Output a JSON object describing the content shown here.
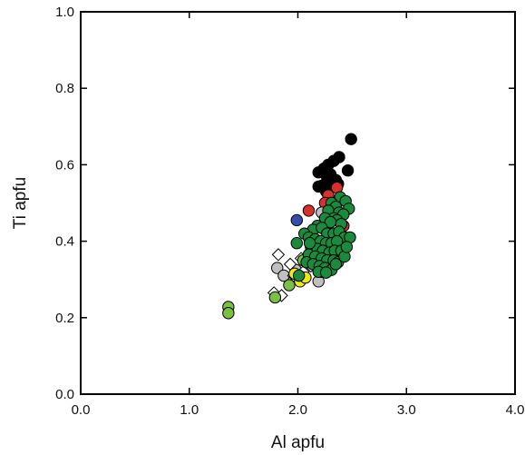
{
  "chart_data": {
    "type": "scatter",
    "xlabel": "Al apfu",
    "ylabel": "Ti apfu",
    "xlim": [
      0,
      4
    ],
    "ylim": [
      0,
      1
    ],
    "x_ticks": [
      "0.0",
      "1.0",
      "2.0",
      "3.0",
      "4.0"
    ],
    "y_ticks": [
      "0.0",
      "0.2",
      "0.4",
      "0.6",
      "0.8",
      "1.0"
    ],
    "grid": false,
    "legend": "none",
    "series": [
      {
        "marker": "circle",
        "fill": "#000000",
        "points": [
          [
            2.49,
            0.667
          ],
          [
            2.38,
            0.62
          ],
          [
            2.33,
            0.61
          ],
          [
            2.28,
            0.6
          ],
          [
            2.24,
            0.59
          ],
          [
            2.19,
            0.58
          ],
          [
            2.3,
            0.575
          ],
          [
            2.46,
            0.585
          ],
          [
            2.27,
            0.565
          ],
          [
            2.35,
            0.56
          ],
          [
            2.22,
            0.545
          ],
          [
            2.19,
            0.543
          ],
          [
            2.31,
            0.548
          ],
          [
            2.26,
            0.53
          ],
          [
            2.37,
            0.55
          ],
          [
            2.3,
            0.505
          ]
        ]
      },
      {
        "marker": "circle",
        "fill": "#d9302c",
        "points": [
          [
            2.1,
            0.48
          ],
          [
            2.36,
            0.54
          ],
          [
            2.28,
            0.52
          ],
          [
            2.42,
            0.44
          ],
          [
            2.25,
            0.5
          ],
          [
            2.33,
            0.47
          ]
        ]
      },
      {
        "marker": "circle",
        "fill": "#b0458a",
        "points": [
          [
            2.3,
            0.42
          ],
          [
            2.21,
            0.38
          ]
        ]
      },
      {
        "marker": "circle",
        "fill": "#3450a6",
        "points": [
          [
            1.99,
            0.455
          ]
        ]
      },
      {
        "marker": "circle",
        "fill": "#c0c0c0",
        "points": [
          [
            1.81,
            0.33
          ],
          [
            1.87,
            0.31
          ],
          [
            1.98,
            0.325
          ],
          [
            2.19,
            0.295
          ],
          [
            2.22,
            0.32
          ],
          [
            2.28,
            0.35
          ],
          [
            2.14,
            0.39
          ],
          [
            2.22,
            0.475
          ],
          [
            2.33,
            0.385
          ],
          [
            2.18,
            0.36
          ],
          [
            2.25,
            0.43
          ],
          [
            2.4,
            0.37
          ]
        ]
      },
      {
        "marker": "diamond",
        "fill": "#ffffff",
        "points": [
          [
            1.82,
            0.365
          ],
          [
            1.78,
            0.265
          ],
          [
            1.85,
            0.258
          ],
          [
            1.93,
            0.34
          ],
          [
            1.96,
            0.31
          ],
          [
            2.03,
            0.355
          ],
          [
            2.12,
            0.335
          ],
          [
            2.05,
            0.32
          ]
        ]
      },
      {
        "marker": "circle",
        "fill": "#f5e614",
        "points": [
          [
            2.02,
            0.295
          ],
          [
            2.07,
            0.305
          ],
          [
            1.97,
            0.315
          ]
        ]
      },
      {
        "marker": "circle",
        "fill": "#7ac143",
        "points": [
          [
            1.36,
            0.228
          ],
          [
            1.36,
            0.212
          ],
          [
            1.79,
            0.253
          ],
          [
            1.92,
            0.285
          ],
          [
            2.05,
            0.35
          ]
        ]
      },
      {
        "marker": "circle",
        "fill": "#1a8a3c",
        "points": [
          [
            2.39,
            0.515
          ],
          [
            2.44,
            0.505
          ],
          [
            2.47,
            0.485
          ],
          [
            2.31,
            0.5
          ],
          [
            2.35,
            0.49
          ],
          [
            2.28,
            0.48
          ],
          [
            2.38,
            0.475
          ],
          [
            2.42,
            0.47
          ],
          [
            2.33,
            0.46
          ],
          [
            2.25,
            0.46
          ],
          [
            2.36,
            0.455
          ],
          [
            2.3,
            0.45
          ],
          [
            2.4,
            0.445
          ],
          [
            2.18,
            0.44
          ],
          [
            2.14,
            0.43
          ],
          [
            2.22,
            0.435
          ],
          [
            2.27,
            0.42
          ],
          [
            2.33,
            0.42
          ],
          [
            2.38,
            0.425
          ],
          [
            2.43,
            0.41
          ],
          [
            2.48,
            0.41
          ],
          [
            2.06,
            0.42
          ],
          [
            2.1,
            0.41
          ],
          [
            2.16,
            0.405
          ],
          [
            2.21,
            0.4
          ],
          [
            2.26,
            0.395
          ],
          [
            2.31,
            0.395
          ],
          [
            2.36,
            0.4
          ],
          [
            1.99,
            0.395
          ],
          [
            2.12,
            0.385
          ],
          [
            2.18,
            0.38
          ],
          [
            2.23,
            0.375
          ],
          [
            2.29,
            0.37
          ],
          [
            2.34,
            0.375
          ],
          [
            2.4,
            0.375
          ],
          [
            2.1,
            0.365
          ],
          [
            2.16,
            0.36
          ],
          [
            2.22,
            0.355
          ],
          [
            2.27,
            0.35
          ],
          [
            2.33,
            0.35
          ],
          [
            2.37,
            0.345
          ],
          [
            2.08,
            0.345
          ],
          [
            2.14,
            0.34
          ],
          [
            2.2,
            0.335
          ],
          [
            2.25,
            0.33
          ],
          [
            2.31,
            0.325
          ],
          [
            2.35,
            0.34
          ],
          [
            2.19,
            0.32
          ],
          [
            2.26,
            0.318
          ],
          [
            2.01,
            0.31
          ],
          [
            2.43,
            0.36
          ],
          [
            2.45,
            0.385
          ],
          [
            2.11,
            0.395
          ]
        ]
      }
    ]
  }
}
